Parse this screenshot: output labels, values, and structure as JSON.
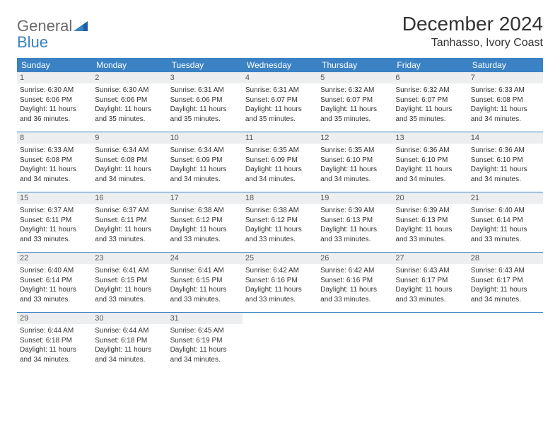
{
  "logo": {
    "general": "General",
    "blue": "Blue"
  },
  "title": "December 2024",
  "location": "Tanhasso, Ivory Coast",
  "colors": {
    "header_bg": "#3b82c4",
    "header_text": "#ffffff",
    "daynum_bg": "#eceeef",
    "row_border": "#3b82c4",
    "body_text": "#333333",
    "logo_gray": "#6b6b6b",
    "logo_blue": "#3b82c4"
  },
  "weekdays": [
    "Sunday",
    "Monday",
    "Tuesday",
    "Wednesday",
    "Thursday",
    "Friday",
    "Saturday"
  ],
  "weeks": [
    [
      {
        "n": "1",
        "sr": "Sunrise: 6:30 AM",
        "ss": "Sunset: 6:06 PM",
        "d1": "Daylight: 11 hours",
        "d2": "and 36 minutes."
      },
      {
        "n": "2",
        "sr": "Sunrise: 6:30 AM",
        "ss": "Sunset: 6:06 PM",
        "d1": "Daylight: 11 hours",
        "d2": "and 35 minutes."
      },
      {
        "n": "3",
        "sr": "Sunrise: 6:31 AM",
        "ss": "Sunset: 6:06 PM",
        "d1": "Daylight: 11 hours",
        "d2": "and 35 minutes."
      },
      {
        "n": "4",
        "sr": "Sunrise: 6:31 AM",
        "ss": "Sunset: 6:07 PM",
        "d1": "Daylight: 11 hours",
        "d2": "and 35 minutes."
      },
      {
        "n": "5",
        "sr": "Sunrise: 6:32 AM",
        "ss": "Sunset: 6:07 PM",
        "d1": "Daylight: 11 hours",
        "d2": "and 35 minutes."
      },
      {
        "n": "6",
        "sr": "Sunrise: 6:32 AM",
        "ss": "Sunset: 6:07 PM",
        "d1": "Daylight: 11 hours",
        "d2": "and 35 minutes."
      },
      {
        "n": "7",
        "sr": "Sunrise: 6:33 AM",
        "ss": "Sunset: 6:08 PM",
        "d1": "Daylight: 11 hours",
        "d2": "and 34 minutes."
      }
    ],
    [
      {
        "n": "8",
        "sr": "Sunrise: 6:33 AM",
        "ss": "Sunset: 6:08 PM",
        "d1": "Daylight: 11 hours",
        "d2": "and 34 minutes."
      },
      {
        "n": "9",
        "sr": "Sunrise: 6:34 AM",
        "ss": "Sunset: 6:08 PM",
        "d1": "Daylight: 11 hours",
        "d2": "and 34 minutes."
      },
      {
        "n": "10",
        "sr": "Sunrise: 6:34 AM",
        "ss": "Sunset: 6:09 PM",
        "d1": "Daylight: 11 hours",
        "d2": "and 34 minutes."
      },
      {
        "n": "11",
        "sr": "Sunrise: 6:35 AM",
        "ss": "Sunset: 6:09 PM",
        "d1": "Daylight: 11 hours",
        "d2": "and 34 minutes."
      },
      {
        "n": "12",
        "sr": "Sunrise: 6:35 AM",
        "ss": "Sunset: 6:10 PM",
        "d1": "Daylight: 11 hours",
        "d2": "and 34 minutes."
      },
      {
        "n": "13",
        "sr": "Sunrise: 6:36 AM",
        "ss": "Sunset: 6:10 PM",
        "d1": "Daylight: 11 hours",
        "d2": "and 34 minutes."
      },
      {
        "n": "14",
        "sr": "Sunrise: 6:36 AM",
        "ss": "Sunset: 6:10 PM",
        "d1": "Daylight: 11 hours",
        "d2": "and 34 minutes."
      }
    ],
    [
      {
        "n": "15",
        "sr": "Sunrise: 6:37 AM",
        "ss": "Sunset: 6:11 PM",
        "d1": "Daylight: 11 hours",
        "d2": "and 33 minutes."
      },
      {
        "n": "16",
        "sr": "Sunrise: 6:37 AM",
        "ss": "Sunset: 6:11 PM",
        "d1": "Daylight: 11 hours",
        "d2": "and 33 minutes."
      },
      {
        "n": "17",
        "sr": "Sunrise: 6:38 AM",
        "ss": "Sunset: 6:12 PM",
        "d1": "Daylight: 11 hours",
        "d2": "and 33 minutes."
      },
      {
        "n": "18",
        "sr": "Sunrise: 6:38 AM",
        "ss": "Sunset: 6:12 PM",
        "d1": "Daylight: 11 hours",
        "d2": "and 33 minutes."
      },
      {
        "n": "19",
        "sr": "Sunrise: 6:39 AM",
        "ss": "Sunset: 6:13 PM",
        "d1": "Daylight: 11 hours",
        "d2": "and 33 minutes."
      },
      {
        "n": "20",
        "sr": "Sunrise: 6:39 AM",
        "ss": "Sunset: 6:13 PM",
        "d1": "Daylight: 11 hours",
        "d2": "and 33 minutes."
      },
      {
        "n": "21",
        "sr": "Sunrise: 6:40 AM",
        "ss": "Sunset: 6:14 PM",
        "d1": "Daylight: 11 hours",
        "d2": "and 33 minutes."
      }
    ],
    [
      {
        "n": "22",
        "sr": "Sunrise: 6:40 AM",
        "ss": "Sunset: 6:14 PM",
        "d1": "Daylight: 11 hours",
        "d2": "and 33 minutes."
      },
      {
        "n": "23",
        "sr": "Sunrise: 6:41 AM",
        "ss": "Sunset: 6:15 PM",
        "d1": "Daylight: 11 hours",
        "d2": "and 33 minutes."
      },
      {
        "n": "24",
        "sr": "Sunrise: 6:41 AM",
        "ss": "Sunset: 6:15 PM",
        "d1": "Daylight: 11 hours",
        "d2": "and 33 minutes."
      },
      {
        "n": "25",
        "sr": "Sunrise: 6:42 AM",
        "ss": "Sunset: 6:16 PM",
        "d1": "Daylight: 11 hours",
        "d2": "and 33 minutes."
      },
      {
        "n": "26",
        "sr": "Sunrise: 6:42 AM",
        "ss": "Sunset: 6:16 PM",
        "d1": "Daylight: 11 hours",
        "d2": "and 33 minutes."
      },
      {
        "n": "27",
        "sr": "Sunrise: 6:43 AM",
        "ss": "Sunset: 6:17 PM",
        "d1": "Daylight: 11 hours",
        "d2": "and 33 minutes."
      },
      {
        "n": "28",
        "sr": "Sunrise: 6:43 AM",
        "ss": "Sunset: 6:17 PM",
        "d1": "Daylight: 11 hours",
        "d2": "and 34 minutes."
      }
    ],
    [
      {
        "n": "29",
        "sr": "Sunrise: 6:44 AM",
        "ss": "Sunset: 6:18 PM",
        "d1": "Daylight: 11 hours",
        "d2": "and 34 minutes."
      },
      {
        "n": "30",
        "sr": "Sunrise: 6:44 AM",
        "ss": "Sunset: 6:18 PM",
        "d1": "Daylight: 11 hours",
        "d2": "and 34 minutes."
      },
      {
        "n": "31",
        "sr": "Sunrise: 6:45 AM",
        "ss": "Sunset: 6:19 PM",
        "d1": "Daylight: 11 hours",
        "d2": "and 34 minutes."
      },
      null,
      null,
      null,
      null
    ]
  ]
}
